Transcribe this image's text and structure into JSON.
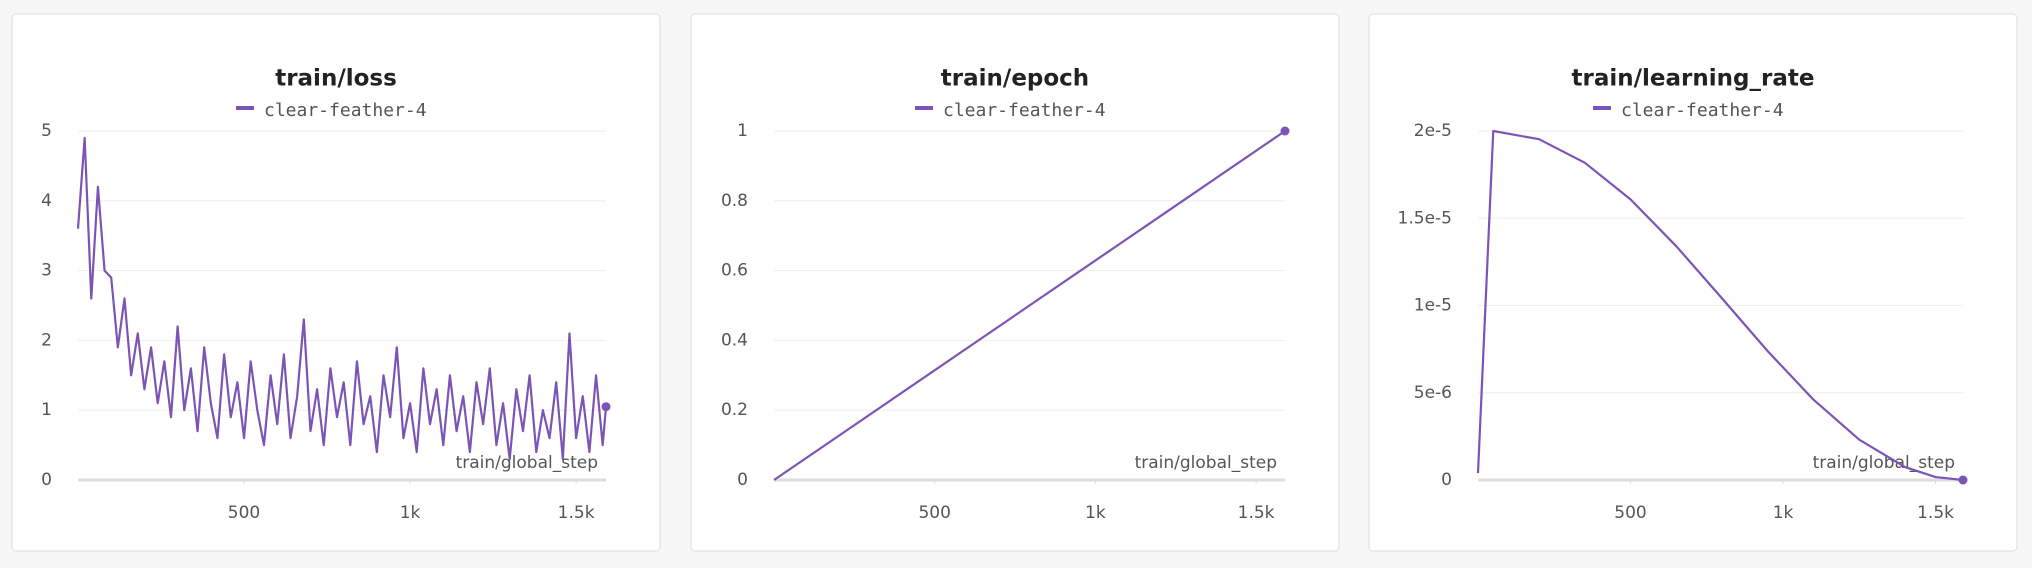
{
  "chart_data": [
    {
      "type": "line",
      "title": "train/loss",
      "xlabel": "train/global_step",
      "grid": true,
      "x": [
        0,
        20,
        40,
        60,
        80,
        100,
        120,
        140,
        160,
        180,
        200,
        220,
        240,
        260,
        280,
        300,
        320,
        340,
        360,
        380,
        400,
        420,
        440,
        460,
        480,
        500,
        520,
        540,
        560,
        580,
        600,
        620,
        640,
        660,
        680,
        700,
        720,
        740,
        760,
        780,
        800,
        820,
        840,
        860,
        880,
        900,
        920,
        940,
        960,
        980,
        1000,
        1020,
        1040,
        1060,
        1080,
        1100,
        1120,
        1140,
        1160,
        1180,
        1200,
        1220,
        1240,
        1260,
        1280,
        1300,
        1320,
        1340,
        1360,
        1380,
        1400,
        1420,
        1440,
        1460,
        1480,
        1500,
        1520,
        1540,
        1560,
        1580,
        1590
      ],
      "series": [
        {
          "name": "clear-feather-4",
          "color": "#7b55b5",
          "values": [
            3.6,
            4.9,
            2.6,
            4.2,
            3.0,
            2.9,
            1.9,
            2.6,
            1.5,
            2.1,
            1.3,
            1.9,
            1.1,
            1.7,
            0.9,
            2.2,
            1.0,
            1.6,
            0.7,
            1.9,
            1.1,
            0.6,
            1.8,
            0.9,
            1.4,
            0.6,
            1.7,
            1.0,
            0.5,
            1.5,
            0.8,
            1.8,
            0.6,
            1.2,
            2.3,
            0.7,
            1.3,
            0.5,
            1.6,
            0.9,
            1.4,
            0.5,
            1.7,
            0.8,
            1.2,
            0.4,
            1.5,
            0.9,
            1.9,
            0.6,
            1.1,
            0.4,
            1.6,
            0.8,
            1.3,
            0.5,
            1.5,
            0.7,
            1.2,
            0.4,
            1.4,
            0.8,
            1.6,
            0.5,
            1.1,
            0.3,
            1.3,
            0.7,
            1.5,
            0.4,
            1.0,
            0.6,
            1.4,
            0.3,
            2.1,
            0.6,
            1.2,
            0.4,
            1.5,
            0.5,
            1.05
          ]
        }
      ],
      "xlim": [
        0,
        1590
      ],
      "xticks": [
        500,
        {
          "value": 1000,
          "label": "1k"
        },
        {
          "value": 1500,
          "label": "1.5k"
        }
      ],
      "ylim": [
        0,
        5
      ],
      "yticks": [
        0,
        1,
        2,
        3,
        4,
        5
      ]
    },
    {
      "type": "line",
      "title": "train/epoch",
      "xlabel": "train/global_step",
      "grid": true,
      "x": [
        0,
        1590
      ],
      "series": [
        {
          "name": "clear-feather-4",
          "color": "#7b55b5",
          "values": [
            0,
            1
          ]
        }
      ],
      "xlim": [
        0,
        1590
      ],
      "xticks": [
        500,
        {
          "value": 1000,
          "label": "1k"
        },
        {
          "value": 1500,
          "label": "1.5k"
        }
      ],
      "ylim": [
        0,
        1
      ],
      "yticks": [
        0,
        0.2,
        0.4,
        0.6,
        0.8,
        1
      ]
    },
    {
      "type": "line",
      "title": "train/learning_rate",
      "xlabel": "train/global_step",
      "grid": true,
      "x": [
        0,
        50,
        200,
        350,
        500,
        650,
        800,
        950,
        1100,
        1250,
        1400,
        1500,
        1590
      ],
      "series": [
        {
          "name": "clear-feather-4",
          "color": "#7b55b5",
          "values": [
            4e-07,
            2e-05,
            1.953e-05,
            1.8185e-05,
            1.608e-05,
            1.34e-05,
            1.041e-05,
            7.38e-06,
            4.6e-06,
            2.31e-06,
            7.4e-07,
            1.7e-07,
            0
          ]
        }
      ],
      "xlim": [
        0,
        1590
      ],
      "xticks": [
        500,
        {
          "value": 1000,
          "label": "1k"
        },
        {
          "value": 1500,
          "label": "1.5k"
        }
      ],
      "ylim": [
        0,
        2e-05
      ],
      "yticks": [
        0,
        {
          "value": 5e-06,
          "label": "5e-6"
        },
        {
          "value": 1e-05,
          "label": "1e-5"
        },
        {
          "value": 1.5e-05,
          "label": "1.5e-5"
        },
        {
          "value": 2e-05,
          "label": "2e-5"
        }
      ]
    }
  ]
}
